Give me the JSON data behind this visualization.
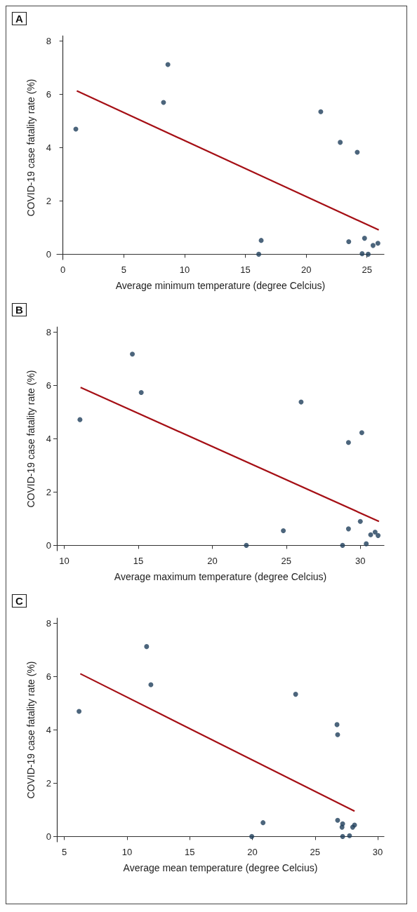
{
  "chart_data": [
    {
      "type": "scatter",
      "title": "A",
      "xlabel": "Average minimum temperature (degree Celcius)",
      "ylabel": "COVID-19 case fatality rate (%)",
      "xlim": [
        -0.5,
        26.4
      ],
      "ylim": [
        -0.2,
        8.2
      ],
      "xticks": [
        0,
        5,
        10,
        15,
        20,
        25
      ],
      "yticks": [
        0,
        2,
        4,
        6,
        8
      ],
      "grid": false,
      "series": [
        {
          "type": "scatter",
          "marker": "circle",
          "color": "#1f3f5b",
          "x": [
            1.06,
            8.63,
            8.27,
            21.2,
            22.8,
            24.2,
            16.1,
            16.3,
            23.5,
            24.8,
            24.6,
            25.1,
            25.5,
            25.9
          ],
          "values": [
            4.7,
            7.12,
            5.7,
            5.35,
            4.2,
            3.83,
            0,
            0.52,
            0.47,
            0.6,
            0.02,
            0,
            0.33,
            0.41
          ]
        },
        {
          "type": "line",
          "marker": "none",
          "color": "#a50f15",
          "x": [
            1.14,
            25.97
          ],
          "values": [
            6.13,
            0.91
          ]
        }
      ]
    },
    {
      "type": "scatter",
      "title": "B",
      "xlabel": "Average maximum temperature (degree Celcius)",
      "ylabel": "COVID-19 case fatality rate (%)",
      "xlim": [
        9.5,
        31.6
      ],
      "ylim": [
        -0.2,
        8.2
      ],
      "xticks": [
        10,
        15,
        20,
        25,
        30
      ],
      "yticks": [
        0,
        2,
        4,
        6,
        8
      ],
      "grid": false,
      "series": [
        {
          "type": "scatter",
          "marker": "circle",
          "color": "#1f3f5b",
          "x": [
            11.06,
            14.6,
            15.2,
            26,
            30.1,
            29.2,
            22.3,
            24.8,
            29.2,
            30,
            28.8,
            30.4,
            30.7,
            31,
            31.2
          ],
          "values": [
            4.72,
            7.18,
            5.74,
            5.38,
            4.23,
            3.86,
            0,
            0.55,
            0.62,
            0.9,
            0,
            0.06,
            0.4,
            0.5,
            0.37
          ]
        },
        {
          "type": "line",
          "marker": "none",
          "color": "#a50f15",
          "x": [
            11.1,
            31.26
          ],
          "values": [
            5.93,
            0.9
          ]
        }
      ]
    },
    {
      "type": "scatter",
      "title": "C",
      "xlabel": "Average mean temperature (degree Celcius)",
      "ylabel": "COVID-19 case fatality rate (%)",
      "xlim": [
        4.4,
        30.5
      ],
      "ylim": [
        -0.2,
        8.2
      ],
      "xticks": [
        5,
        10,
        15,
        20,
        25,
        30
      ],
      "yticks": [
        0,
        2,
        4,
        6,
        8
      ],
      "grid": false,
      "series": [
        {
          "type": "scatter",
          "marker": "circle",
          "color": "#1f3f5b",
          "x": [
            6.17,
            11.56,
            11.9,
            23.45,
            26.75,
            26.8,
            19.95,
            20.85,
            26.8,
            27.2,
            27.15,
            27.2,
            27.75,
            28,
            28.15
          ],
          "values": [
            4.7,
            7.13,
            5.7,
            5.34,
            4.2,
            3.82,
            0,
            0.52,
            0.61,
            0.48,
            0.35,
            0,
            0.03,
            0.35,
            0.43
          ]
        },
        {
          "type": "line",
          "marker": "none",
          "color": "#a50f15",
          "x": [
            6.27,
            28.15
          ],
          "values": [
            6.11,
            0.95
          ]
        }
      ]
    }
  ]
}
